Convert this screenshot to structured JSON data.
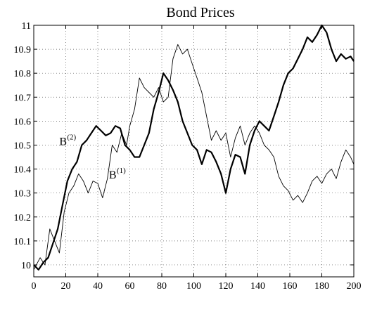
{
  "chart_data": {
    "type": "line",
    "title": "Bond Prices",
    "xlabel": "",
    "ylabel": "",
    "xlim": [
      0,
      200
    ],
    "ylim": [
      9.95,
      11
    ],
    "x_ticks": [
      "0",
      "20",
      "40",
      "60",
      "80",
      "100",
      "120",
      "140",
      "160",
      "180",
      "200"
    ],
    "y_ticks": [
      "10",
      "10.1",
      "10.2",
      "10.3",
      "10.4",
      "10.5",
      "10.6",
      "10.7",
      "10.8",
      "10.9",
      "11"
    ],
    "grid": true,
    "grid_style": "dotted",
    "series": [
      {
        "name": "B",
        "superscript": "(1)",
        "style": "thin",
        "x": [
          0,
          4,
          7,
          10,
          13,
          16,
          19,
          22,
          25,
          28,
          31,
          34,
          37,
          40,
          43,
          46,
          49,
          52,
          55,
          58,
          60,
          63,
          66,
          69,
          72,
          75,
          78,
          81,
          84,
          87,
          90,
          93,
          96,
          99,
          102,
          105,
          108,
          111,
          114,
          117,
          120,
          123,
          126,
          129,
          132,
          135,
          138,
          141,
          144,
          147,
          150,
          153,
          156,
          159,
          162,
          165,
          168,
          171,
          174,
          177,
          180,
          183,
          186,
          189,
          192,
          195,
          198,
          200
        ],
        "values": [
          9.98,
          10.03,
          10.0,
          10.15,
          10.1,
          10.05,
          10.22,
          10.3,
          10.33,
          10.38,
          10.35,
          10.3,
          10.35,
          10.34,
          10.28,
          10.36,
          10.5,
          10.47,
          10.55,
          10.5,
          10.58,
          10.65,
          10.78,
          10.74,
          10.72,
          10.7,
          10.74,
          10.68,
          10.7,
          10.86,
          10.92,
          10.88,
          10.9,
          10.84,
          10.78,
          10.72,
          10.62,
          10.52,
          10.56,
          10.52,
          10.55,
          10.45,
          10.53,
          10.58,
          10.5,
          10.55,
          10.58,
          10.55,
          10.5,
          10.48,
          10.45,
          10.37,
          10.33,
          10.31,
          10.27,
          10.29,
          10.26,
          10.3,
          10.35,
          10.37,
          10.34,
          10.38,
          10.4,
          10.36,
          10.43,
          10.48,
          10.45,
          10.42
        ]
      },
      {
        "name": "B",
        "superscript": "(2)",
        "style": "thick",
        "x": [
          0,
          3,
          6,
          9,
          12,
          15,
          18,
          21,
          24,
          27,
          30,
          33,
          36,
          39,
          42,
          45,
          48,
          51,
          54,
          57,
          60,
          63,
          66,
          69,
          72,
          75,
          78,
          81,
          84,
          87,
          90,
          93,
          96,
          99,
          102,
          105,
          108,
          111,
          114,
          117,
          120,
          123,
          126,
          129,
          132,
          135,
          138,
          141,
          144,
          147,
          150,
          153,
          156,
          159,
          162,
          165,
          168,
          171,
          174,
          177,
          180,
          183,
          186,
          189,
          192,
          195,
          198,
          200
        ],
        "values": [
          10.0,
          9.98,
          10.01,
          10.03,
          10.09,
          10.15,
          10.25,
          10.35,
          10.4,
          10.43,
          10.5,
          10.52,
          10.55,
          10.58,
          10.56,
          10.54,
          10.55,
          10.58,
          10.57,
          10.5,
          10.48,
          10.45,
          10.45,
          10.5,
          10.55,
          10.65,
          10.72,
          10.8,
          10.77,
          10.73,
          10.68,
          10.6,
          10.55,
          10.5,
          10.48,
          10.42,
          10.48,
          10.47,
          10.43,
          10.38,
          10.3,
          10.4,
          10.46,
          10.45,
          10.38,
          10.5,
          10.56,
          10.6,
          10.58,
          10.56,
          10.62,
          10.68,
          10.75,
          10.8,
          10.82,
          10.86,
          10.9,
          10.95,
          10.93,
          10.96,
          11.0,
          10.97,
          10.9,
          10.85,
          10.88,
          10.86,
          10.87,
          10.85
        ]
      }
    ],
    "annotations": [
      {
        "text": "B",
        "superscript": "(2)",
        "x": 16,
        "y": 10.5
      },
      {
        "text": "B",
        "superscript": "(1)",
        "x": 47,
        "y": 10.36
      }
    ]
  }
}
